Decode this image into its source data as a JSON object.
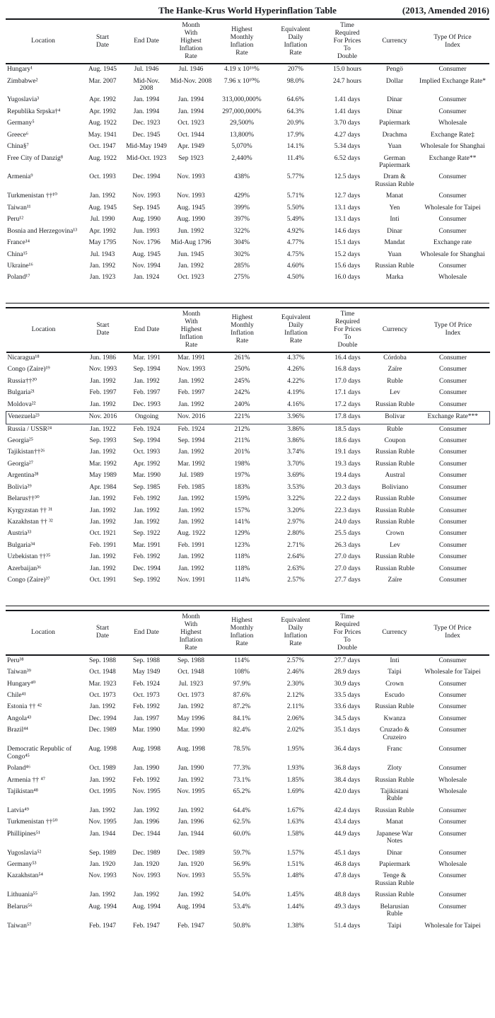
{
  "title": "The Hanke-Krus World Hyperinflation Table",
  "subtitle": "(2013, Amended 2016)",
  "columns": [
    "Location",
    "Start\nDate",
    "End Date",
    "Month\nWith\nHighest\nInflation\nRate",
    "Highest\nMonthly\nInflation\nRate",
    "Equivalent\nDaily\nInflation\nRate",
    "Time\nRequired\nFor Prices\nTo\nDouble",
    "Currency",
    "Type Of Price\nIndex"
  ],
  "column_keys": [
    "location",
    "start-date",
    "end-date",
    "peak-month",
    "highest-monthly-inflation-rate",
    "equivalent-daily-inflation-rate",
    "time-to-double",
    "currency",
    "price-index-type"
  ],
  "highlight": {
    "section": 1,
    "row": 5,
    "location": "Venezuela²³"
  },
  "sections": [
    {
      "rows": [
        [
          "Hungary¹",
          "Aug. 1945",
          "Jul. 1946",
          "Jul. 1946",
          "4.19 x 10¹⁶%",
          "207%",
          "15.0 hours",
          "Pengö",
          "Consumer"
        ],
        [
          "Zimbabwe²",
          "Mar. 2007",
          "Mid-Nov. 2008",
          "Mid-Nov. 2008",
          "7.96 x 10¹⁰%",
          "98.0%",
          "24.7 hours",
          "Dollar",
          "Implied Exchange Rate*"
        ],
        [
          "Yugoslavia³",
          "Apr. 1992",
          "Jan. 1994",
          "Jan. 1994",
          "313,000,000%",
          "64.6%",
          "1.41 days",
          "Dinar",
          "Consumer"
        ],
        [
          "Republika Srpska†⁴",
          "Apr. 1992",
          "Jan. 1994",
          "Jan. 1994",
          "297,000,000%",
          "64.3%",
          "1.41 days",
          "Dinar",
          "Consumer"
        ],
        [
          "Germany⁵",
          "Aug. 1922",
          "Dec. 1923",
          "Oct. 1923",
          "29,500%",
          "20.9%",
          "3.70 days",
          "Papiermark",
          "Wholesale"
        ],
        [
          "Greece⁶",
          "May. 1941",
          "Dec. 1945",
          "Oct. 1944",
          "13,800%",
          "17.9%",
          "4.27 days",
          "Drachma",
          "Exchange Rate‡"
        ],
        [
          "China§⁷",
          "Oct. 1947",
          "Mid-May 1949",
          "Apr. 1949",
          "5,070%",
          "14.1%",
          "5.34 days",
          "Yuan",
          "Wholesale for Shanghai"
        ],
        [
          "Free City of Danzig⁸",
          "Aug. 1922",
          "Mid-Oct. 1923",
          "Sep 1923",
          "2,440%",
          "11.4%",
          "6.52 days",
          "German Papiermark",
          "Exchange Rate**"
        ],
        [
          "Armenia⁹",
          "Oct. 1993",
          "Dec. 1994",
          "Nov. 1993",
          "438%",
          "5.77%",
          "12.5 days",
          "Dram & Russian Ruble",
          "Consumer"
        ],
        [
          "Turkmenistan ††¹⁰",
          "Jan. 1992",
          "Nov. 1993",
          "Nov. 1993",
          "429%",
          "5.71%",
          "12.7 days",
          "Manat",
          "Consumer"
        ],
        [
          "Taiwan¹¹",
          "Aug. 1945",
          "Sep. 1945",
          "Aug. 1945",
          "399%",
          "5.50%",
          "13.1 days",
          "Yen",
          "Wholesale for Taipei"
        ],
        [
          "Peru¹²",
          "Jul. 1990",
          "Aug. 1990",
          "Aug. 1990",
          "397%",
          "5.49%",
          "13.1 days",
          "Inti",
          "Consumer"
        ],
        [
          "Bosnia and Herzegovina¹³",
          "Apr. 1992",
          "Jun. 1993",
          "Jun. 1992",
          "322%",
          "4.92%",
          "14.6 days",
          "Dinar",
          "Consumer"
        ],
        [
          "France¹⁴",
          "May 1795",
          "Nov. 1796",
          "Mid-Aug 1796",
          "304%",
          "4.77%",
          "15.1 days",
          "Mandat",
          "Exchange rate"
        ],
        [
          "China¹⁵",
          "Jul. 1943",
          "Aug. 1945",
          "Jun. 1945",
          "302%",
          "4.75%",
          "15.2 days",
          "Yuan",
          "Wholesale for Shanghai"
        ],
        [
          "Ukraine¹⁶",
          "Jan. 1992",
          "Nov. 1994",
          "Jan. 1992",
          "285%",
          "4.60%",
          "15.6 days",
          "Russian Ruble",
          "Consumer"
        ],
        [
          "Poland¹⁷",
          "Jan. 1923",
          "Jan. 1924",
          "Oct. 1923",
          "275%",
          "4.50%",
          "16.0 days",
          "Marka",
          "Wholesale"
        ]
      ]
    },
    {
      "rows": [
        [
          "Nicaragua¹⁸",
          "Jun. 1986",
          "Mar. 1991",
          "Mar. 1991",
          "261%",
          "4.37%",
          "16.4 days",
          "Córdoba",
          "Consumer"
        ],
        [
          "Congo (Zaire)¹⁹",
          "Nov. 1993",
          "Sep. 1994",
          "Nov. 1993",
          "250%",
          "4.26%",
          "16.8 days",
          "Zaïre",
          "Consumer"
        ],
        [
          "Russia††²⁰",
          "Jan. 1992",
          "Jan. 1992",
          "Jan. 1992",
          "245%",
          "4.22%",
          "17.0 days",
          "Ruble",
          "Consumer"
        ],
        [
          "Bulgaria²¹",
          "Feb. 1997",
          "Feb. 1997",
          "Feb. 1997",
          "242%",
          "4.19%",
          "17.1 days",
          "Lev",
          "Consumer"
        ],
        [
          "Moldova²²",
          "Jan. 1992",
          "Dec. 1993",
          "Jan. 1992",
          "240%",
          "4.16%",
          "17.2 days",
          "Russian Ruble",
          "Consumer"
        ],
        [
          "Venezuela²³",
          "Nov. 2016",
          "Ongoing",
          "Nov. 2016",
          "221%",
          "3.96%",
          "17.8 days",
          "Bolivar",
          "Exchange Rate***"
        ],
        [
          "Russia / USSR²⁴",
          "Jan. 1922",
          "Feb. 1924",
          "Feb. 1924",
          "212%",
          "3.86%",
          "18.5 days",
          "Ruble",
          "Consumer"
        ],
        [
          "Georgia²⁵",
          "Sep. 1993",
          "Sep. 1994",
          "Sep. 1994",
          "211%",
          "3.86%",
          "18.6 days",
          "Coupon",
          "Consumer"
        ],
        [
          "Tajikistan††²⁶",
          "Jan. 1992",
          "Oct. 1993",
          "Jan. 1992",
          "201%",
          "3.74%",
          "19.1 days",
          "Russian Ruble",
          "Consumer"
        ],
        [
          "Georgia²⁷",
          "Mar. 1992",
          "Apr. 1992",
          "Mar. 1992",
          "198%",
          "3.70%",
          "19.3 days",
          "Russian Ruble",
          "Consumer"
        ],
        [
          "Argentina²⁸",
          "May 1989",
          "Mar. 1990",
          "Jul. 1989",
          "197%",
          "3.69%",
          "19.4 days",
          "Austral",
          "Consumer"
        ],
        [
          "Bolivia²⁹",
          "Apr. 1984",
          "Sep. 1985",
          "Feb. 1985",
          "183%",
          "3.53%",
          "20.3 days",
          "Boliviano",
          "Consumer"
        ],
        [
          "Belarus††³⁰",
          "Jan. 1992",
          "Feb. 1992",
          "Jan. 1992",
          "159%",
          "3.22%",
          "22.2 days",
          "Russian Ruble",
          "Consumer"
        ],
        [
          "Kyrgyzstan †† ³¹",
          "Jan. 1992",
          "Jan. 1992",
          "Jan. 1992",
          "157%",
          "3.20%",
          "22.3 days",
          "Russian Ruble",
          "Consumer"
        ],
        [
          "Kazakhstan †† ³²",
          "Jan. 1992",
          "Jan. 1992",
          "Jan. 1992",
          "141%",
          "2.97%",
          "24.0 days",
          "Russian Ruble",
          "Consumer"
        ],
        [
          "Austria³³",
          "Oct. 1921",
          "Sep. 1922",
          "Aug. 1922",
          "129%",
          "2.80%",
          "25.5 days",
          "Crown",
          "Consumer"
        ],
        [
          "Bulgaria³⁴",
          "Feb. 1991",
          "Mar. 1991",
          "Feb. 1991",
          "123%",
          "2.71%",
          "26.3 days",
          "Lev",
          "Consumer"
        ],
        [
          "Uzbekistan ††³⁵",
          "Jan. 1992",
          "Feb. 1992",
          "Jan. 1992",
          "118%",
          "2.64%",
          "27.0 days",
          "Russian Ruble",
          "Consumer"
        ],
        [
          "Azerbaijan³⁶",
          "Jan. 1992",
          "Dec. 1994",
          "Jan. 1992",
          "118%",
          "2.63%",
          "27.0 days",
          "Russian Ruble",
          "Consumer"
        ],
        [
          "Congo (Zaire)³⁷",
          "Oct. 1991",
          "Sep. 1992",
          "Nov. 1991",
          "114%",
          "2.57%",
          "27.7 days",
          "Zaïre",
          "Consumer"
        ]
      ]
    },
    {
      "rows": [
        [
          "Peru³⁸",
          "Sep. 1988",
          "Sep. 1988",
          "Sep. 1988",
          "114%",
          "2.57%",
          "27.7 days",
          "Inti",
          "Consumer"
        ],
        [
          "Taiwan³⁹",
          "Oct. 1948",
          "May 1949",
          "Oct. 1948",
          "108%",
          "2.46%",
          "28.9 days",
          "Taipi",
          "Wholesale for Taipei"
        ],
        [
          "Hungary⁴⁰",
          "Mar. 1923",
          "Feb. 1924",
          "Jul. 1923",
          "97.9%",
          "2.30%",
          "30.9 days",
          "Crown",
          "Consumer"
        ],
        [
          "Chile⁴¹",
          "Oct. 1973",
          "Oct. 1973",
          "Oct. 1973",
          "87.6%",
          "2.12%",
          "33.5 days",
          "Escudo",
          "Consumer"
        ],
        [
          "Estonia †† ⁴²",
          "Jan. 1992",
          "Feb. 1992",
          "Jan. 1992",
          "87.2%",
          "2.11%",
          "33.6 days",
          "Russian Ruble",
          "Consumer"
        ],
        [
          "Angola⁴³",
          "Dec. 1994",
          "Jan. 1997",
          "May 1996",
          "84.1%",
          "2.06%",
          "34.5 days",
          "Kwanza",
          "Consumer"
        ],
        [
          "Brazil⁴⁴",
          "Dec. 1989",
          "Mar. 1990",
          "Mar. 1990",
          "82.4%",
          "2.02%",
          "35.1 days",
          "Cruzado & Cruzeiro",
          "Consumer"
        ],
        [
          "Democratic Republic of Congo⁴⁵",
          "Aug. 1998",
          "Aug. 1998",
          "Aug. 1998",
          "78.5%",
          "1.95%",
          "36.4 days",
          "Franc",
          "Consumer"
        ],
        [
          "Poland⁴⁶",
          "Oct. 1989",
          "Jan. 1990",
          "Jan. 1990",
          "77.3%",
          "1.93%",
          "36.8 days",
          "Zloty",
          "Consumer"
        ],
        [
          "Armenia †† ⁴⁷",
          "Jan. 1992",
          "Feb. 1992",
          "Jan. 1992",
          "73.1%",
          "1.85%",
          "38.4 days",
          "Russian Ruble",
          "Wholesale"
        ],
        [
          "Tajikistan⁴⁸",
          "Oct. 1995",
          "Nov. 1995",
          "Nov. 1995",
          "65.2%",
          "1.69%",
          "42.0 days",
          "Tajikistani Ruble",
          "Wholesale"
        ],
        [
          "Latvia⁴⁹",
          "Jan. 1992",
          "Jan. 1992",
          "Jan. 1992",
          "64.4%",
          "1.67%",
          "42.4 days",
          "Russian Ruble",
          "Consumer"
        ],
        [
          "Turkmenistan ††⁵⁰",
          "Nov. 1995",
          "Jan. 1996",
          "Jan. 1996",
          "62.5%",
          "1.63%",
          "43.4 days",
          "Manat",
          "Consumer"
        ],
        [
          "Phillipines⁵¹",
          "Jan. 1944",
          "Dec. 1944",
          "Jan. 1944",
          "60.0%",
          "1.58%",
          "44.9 days",
          "Japanese War Notes",
          "Consumer"
        ],
        [
          "Yugoslavia⁵²",
          "Sep. 1989",
          "Dec. 1989",
          "Dec. 1989",
          "59.7%",
          "1.57%",
          "45.1 days",
          "Dinar",
          "Consumer"
        ],
        [
          "Germany⁵³",
          "Jan. 1920",
          "Jan. 1920",
          "Jan. 1920",
          "56.9%",
          "1.51%",
          "46.8 days",
          "Papiermark",
          "Wholesale"
        ],
        [
          "Kazakhstan⁵⁴",
          "Nov. 1993",
          "Nov. 1993",
          "Nov. 1993",
          "55.5%",
          "1.48%",
          "47.8 days",
          "Tenge & Russian Ruble",
          "Consumer"
        ],
        [
          "Lithuania⁵⁵",
          "Jan. 1992",
          "Jan. 1992",
          "Jan. 1992",
          "54.0%",
          "1.45%",
          "48.8 days",
          "Russian Ruble",
          "Consumer"
        ],
        [
          "Belarus⁵⁶",
          "Aug. 1994",
          "Aug. 1994",
          "Aug. 1994",
          "53.4%",
          "1.44%",
          "49.3 days",
          "Belarusian Ruble",
          "Consumer"
        ],
        [
          "Taiwan⁵⁷",
          "Feb. 1947",
          "Feb. 1947",
          "Feb. 1947",
          "50.8%",
          "1.38%",
          "51.4 days",
          "Taipi",
          "Wholesale for Taipei"
        ]
      ]
    }
  ]
}
